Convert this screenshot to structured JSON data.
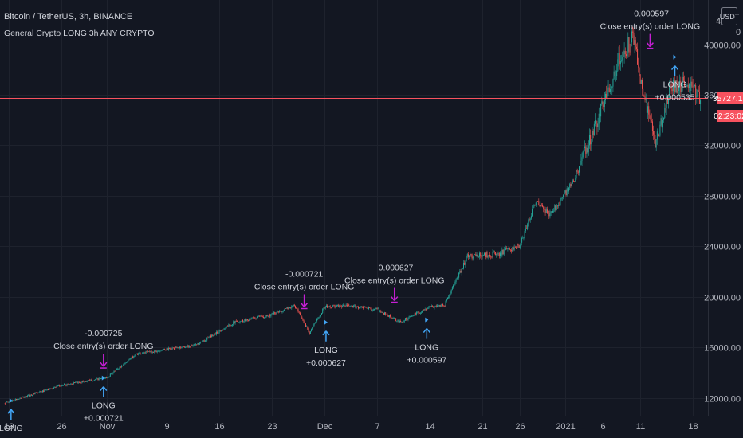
{
  "header": {
    "symbol_title": "Bitcoin / TetherUS, 3h, BINANCE",
    "strategy_name": "General Crypto LONG 3h ANY CRYPTO"
  },
  "toolbar": {
    "currency_button": "USDT",
    "scale_top_label": "4",
    "scale_top_value": "0"
  },
  "price_axis": {
    "price_tag": "35727.12",
    "time_tag": "02:23:02",
    "price_tag_color": "#f7525f"
  },
  "colors": {
    "up": "#26a69a",
    "down": "#ef5350",
    "long_arrow": "#42a5f5",
    "close_arrow": "#c51fd4",
    "background": "#131722",
    "grid": "#1e222d"
  },
  "chart_data": {
    "type": "candlestick",
    "title": "Bitcoin / TetherUS, 3h, BINANCE",
    "subtitle": "General Crypto LONG 3h ANY CRYPTO",
    "xlabel": "",
    "ylabel": "",
    "ylim": [
      10600,
      43500
    ],
    "grid": true,
    "current_price": 35727.12,
    "x_ticks": [
      "19",
      "26",
      "Nov",
      "9",
      "16",
      "23",
      "Dec",
      "7",
      "14",
      "21",
      "26",
      "2021",
      "6",
      "11",
      "18"
    ],
    "x_ticks_day": [
      0,
      7,
      13,
      21,
      28,
      35,
      42,
      49,
      56,
      63,
      68,
      74,
      79,
      84,
      91
    ],
    "y_ticks": [
      12000,
      16000,
      20000,
      24000,
      28000,
      32000,
      36000,
      40000
    ],
    "y_tick_labels": [
      "12000.00",
      "16000.00",
      "20000.00",
      "24000.00",
      "28000.00",
      "32000.00",
      "36000.00",
      "40000.00"
    ],
    "path": [
      {
        "day": -0.5,
        "price": 11600
      },
      {
        "day": 7,
        "price": 13000
      },
      {
        "day": 13,
        "price": 13600
      },
      {
        "day": 17,
        "price": 15500
      },
      {
        "day": 25,
        "price": 16200
      },
      {
        "day": 30,
        "price": 18000
      },
      {
        "day": 35,
        "price": 18600
      },
      {
        "day": 38,
        "price": 19300
      },
      {
        "day": 40,
        "price": 17200
      },
      {
        "day": 42,
        "price": 19200
      },
      {
        "day": 45,
        "price": 19300
      },
      {
        "day": 49,
        "price": 19000
      },
      {
        "day": 52,
        "price": 18000
      },
      {
        "day": 56,
        "price": 19200
      },
      {
        "day": 58,
        "price": 19400
      },
      {
        "day": 61,
        "price": 23200
      },
      {
        "day": 65,
        "price": 23400
      },
      {
        "day": 68,
        "price": 24000
      },
      {
        "day": 70,
        "price": 27500
      },
      {
        "day": 72,
        "price": 26500
      },
      {
        "day": 75,
        "price": 29000
      },
      {
        "day": 78,
        "price": 33500
      },
      {
        "day": 81,
        "price": 38500
      },
      {
        "day": 83,
        "price": 40500
      },
      {
        "day": 84.5,
        "price": 36000
      },
      {
        "day": 86,
        "price": 32000
      },
      {
        "day": 88,
        "price": 36500
      },
      {
        "day": 90,
        "price": 37000
      },
      {
        "day": 92,
        "price": 35800
      }
    ],
    "signals": [
      {
        "type": "long",
        "day": 0.3,
        "price": 11600,
        "lines": [
          "LONG"
        ]
      },
      {
        "type": "close",
        "day": 12.6,
        "price": 14000,
        "lines": [
          "-0.000725",
          "Close entry(s) order LONG"
        ]
      },
      {
        "type": "long",
        "day": 12.6,
        "price": 13400,
        "lines": [
          "LONG",
          "+0.000721"
        ]
      },
      {
        "type": "close",
        "day": 39.3,
        "price": 18700,
        "lines": [
          "-0.000721",
          "Close entry(s) order LONG"
        ]
      },
      {
        "type": "long",
        "day": 42.2,
        "price": 17800,
        "lines": [
          "LONG",
          "+0.000627"
        ]
      },
      {
        "type": "close",
        "day": 51.3,
        "price": 19200,
        "lines": [
          "-0.000627",
          "Close entry(s) order LONG"
        ]
      },
      {
        "type": "long",
        "day": 55.6,
        "price": 18000,
        "lines": [
          "LONG",
          "+0.000597"
        ]
      },
      {
        "type": "close",
        "day": 85.3,
        "price": 39300,
        "lines": [
          "-0.000597",
          "Close entry(s) order LONG"
        ]
      },
      {
        "type": "long",
        "day": 88.6,
        "price": 38800,
        "lines": [
          "LONG",
          "+0.000535"
        ]
      }
    ]
  }
}
